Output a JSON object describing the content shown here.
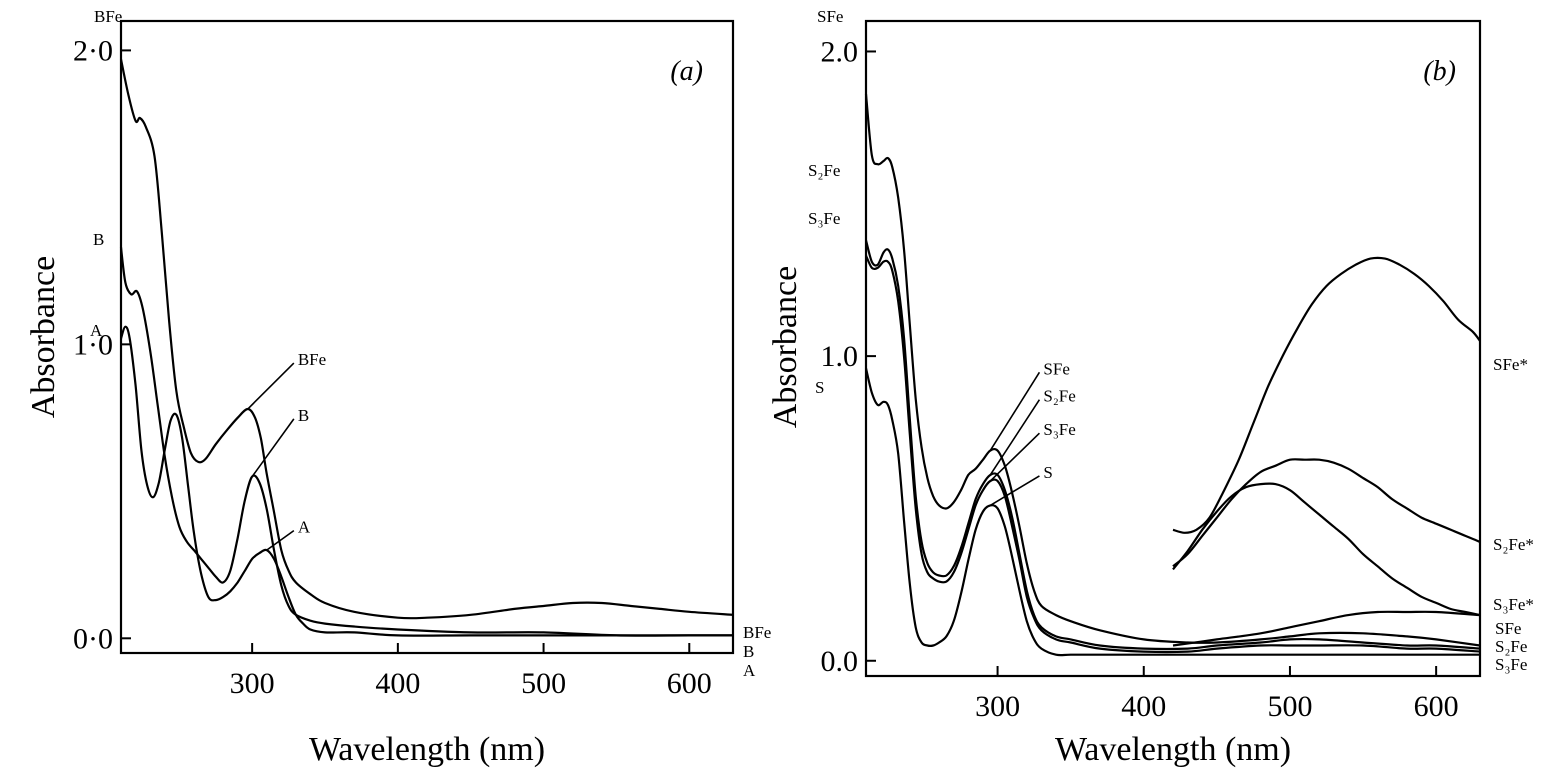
{
  "chart_data": [
    {
      "type": "line",
      "panel_label": "(a)",
      "xlabel": "Wavelength (nm)",
      "ylabel": "Absorbance",
      "xlim": [
        210,
        630
      ],
      "ylim": [
        -0.05,
        2.1
      ],
      "xticks": [
        300,
        400,
        500,
        600
      ],
      "xtick_labels": [
        "300",
        "400",
        "500",
        "600"
      ],
      "yticks": [
        0,
        1,
        2
      ],
      "ytick_labels": [
        "0·0",
        "1·0",
        "2·0"
      ],
      "series": [
        {
          "name": "BFe",
          "x": [
            210,
            215,
            220,
            223,
            227,
            233,
            238,
            243,
            248,
            253,
            258,
            263,
            268,
            275,
            283,
            290,
            297,
            302,
            306,
            310,
            315,
            320,
            325,
            330,
            340,
            350,
            370,
            400,
            420,
            450,
            480,
            500,
            520,
            540,
            560,
            580,
            600,
            630
          ],
          "y": [
            1.97,
            1.85,
            1.76,
            1.77,
            1.74,
            1.64,
            1.38,
            1.08,
            0.84,
            0.72,
            0.63,
            0.6,
            0.61,
            0.66,
            0.71,
            0.75,
            0.78,
            0.75,
            0.68,
            0.56,
            0.43,
            0.3,
            0.23,
            0.19,
            0.15,
            0.12,
            0.09,
            0.07,
            0.07,
            0.08,
            0.1,
            0.11,
            0.12,
            0.12,
            0.11,
            0.1,
            0.09,
            0.08
          ]
        },
        {
          "name": "B",
          "x": [
            210,
            213,
            217,
            221,
            225,
            230,
            235,
            240,
            245,
            250,
            255,
            260,
            265,
            270,
            275,
            280,
            285,
            290,
            295,
            300,
            305,
            310,
            315,
            320,
            325,
            330,
            340,
            350,
            370,
            400,
            450,
            500,
            550,
            600,
            630
          ],
          "y": [
            1.33,
            1.21,
            1.17,
            1.18,
            1.12,
            0.98,
            0.8,
            0.62,
            0.48,
            0.38,
            0.33,
            0.3,
            0.27,
            0.24,
            0.21,
            0.19,
            0.23,
            0.34,
            0.47,
            0.55,
            0.53,
            0.44,
            0.3,
            0.18,
            0.11,
            0.08,
            0.06,
            0.05,
            0.04,
            0.03,
            0.02,
            0.02,
            0.01,
            0.01,
            0.01
          ]
        },
        {
          "name": "A",
          "x": [
            210,
            213,
            216,
            220,
            224,
            228,
            232,
            236,
            240,
            244,
            248,
            252,
            256,
            260,
            265,
            270,
            275,
            280,
            285,
            290,
            295,
            300,
            305,
            310,
            315,
            320,
            325,
            330,
            335,
            340,
            350,
            370,
            400,
            450,
            500,
            550,
            600,
            630
          ],
          "y": [
            1.02,
            1.06,
            1.02,
            0.86,
            0.64,
            0.52,
            0.48,
            0.53,
            0.64,
            0.74,
            0.76,
            0.68,
            0.52,
            0.36,
            0.22,
            0.14,
            0.13,
            0.14,
            0.16,
            0.19,
            0.23,
            0.27,
            0.29,
            0.3,
            0.27,
            0.21,
            0.14,
            0.08,
            0.05,
            0.03,
            0.02,
            0.02,
            0.01,
            0.01,
            0.01,
            0.01,
            0.01,
            0.01
          ]
        }
      ],
      "annotations": [
        {
          "text": "BFe",
          "x": 330,
          "y": 0.95
        },
        {
          "text": "B",
          "x": 330,
          "y": 0.76
        },
        {
          "text": "A",
          "x": 330,
          "y": 0.38
        }
      ],
      "left_labels": [
        "BFe",
        "B",
        "A"
      ],
      "right_labels": [
        "BFe",
        "B",
        "A"
      ]
    },
    {
      "type": "line",
      "panel_label": "(b)",
      "xlabel": "Wavelength (nm)",
      "ylabel": "Absorbance",
      "xlim": [
        210,
        630
      ],
      "ylim": [
        -0.05,
        2.1
      ],
      "xticks": [
        300,
        400,
        500,
        600
      ],
      "xtick_labels": [
        "300",
        "400",
        "500",
        "600"
      ],
      "yticks": [
        0,
        1,
        2
      ],
      "ytick_labels": [
        "0.0",
        "1.0",
        "2.0"
      ],
      "series": [
        {
          "name": "SFe",
          "x": [
            210,
            214,
            218,
            222,
            225,
            228,
            232,
            236,
            240,
            244,
            248,
            252,
            256,
            260,
            265,
            270,
            275,
            280,
            285,
            290,
            295,
            300,
            305,
            310,
            315,
            320,
            325,
            330,
            340,
            350,
            370,
            400,
            430,
            450,
            480,
            500,
            520,
            550,
            580,
            600,
            630
          ],
          "y": [
            1.86,
            1.66,
            1.63,
            1.64,
            1.65,
            1.62,
            1.52,
            1.35,
            1.1,
            0.86,
            0.7,
            0.6,
            0.54,
            0.51,
            0.5,
            0.52,
            0.56,
            0.61,
            0.63,
            0.66,
            0.69,
            0.69,
            0.64,
            0.55,
            0.44,
            0.32,
            0.23,
            0.18,
            0.15,
            0.13,
            0.1,
            0.07,
            0.06,
            0.06,
            0.07,
            0.08,
            0.09,
            0.09,
            0.08,
            0.07,
            0.05
          ]
        },
        {
          "name": "S2Fe",
          "x": [
            210,
            214,
            218,
            222,
            225,
            228,
            232,
            236,
            240,
            244,
            248,
            252,
            256,
            260,
            265,
            270,
            275,
            280,
            285,
            290,
            295,
            300,
            305,
            310,
            315,
            320,
            325,
            330,
            340,
            350,
            370,
            400,
            430,
            450,
            480,
            500,
            520,
            550,
            580,
            600,
            630
          ],
          "y": [
            1.38,
            1.31,
            1.3,
            1.34,
            1.35,
            1.32,
            1.23,
            1.06,
            0.79,
            0.54,
            0.39,
            0.32,
            0.29,
            0.28,
            0.28,
            0.31,
            0.37,
            0.45,
            0.53,
            0.58,
            0.61,
            0.61,
            0.56,
            0.47,
            0.35,
            0.23,
            0.15,
            0.11,
            0.08,
            0.07,
            0.05,
            0.04,
            0.04,
            0.05,
            0.06,
            0.07,
            0.07,
            0.06,
            0.05,
            0.05,
            0.04
          ]
        },
        {
          "name": "S3Fe",
          "x": [
            210,
            214,
            218,
            222,
            225,
            228,
            232,
            236,
            240,
            244,
            248,
            252,
            256,
            260,
            265,
            270,
            275,
            280,
            285,
            290,
            295,
            300,
            305,
            310,
            315,
            320,
            325,
            330,
            340,
            350,
            370,
            400,
            430,
            450,
            480,
            500,
            520,
            550,
            580,
            600,
            630
          ],
          "y": [
            1.33,
            1.29,
            1.29,
            1.31,
            1.31,
            1.28,
            1.18,
            1.0,
            0.74,
            0.5,
            0.35,
            0.29,
            0.27,
            0.26,
            0.26,
            0.29,
            0.35,
            0.43,
            0.51,
            0.56,
            0.59,
            0.59,
            0.54,
            0.44,
            0.33,
            0.21,
            0.14,
            0.1,
            0.07,
            0.06,
            0.04,
            0.03,
            0.03,
            0.04,
            0.05,
            0.05,
            0.05,
            0.05,
            0.04,
            0.04,
            0.03
          ]
        },
        {
          "name": "S",
          "x": [
            210,
            214,
            218,
            222,
            225,
            228,
            232,
            236,
            240,
            244,
            248,
            252,
            256,
            260,
            265,
            270,
            275,
            280,
            285,
            290,
            295,
            300,
            305,
            310,
            315,
            320,
            325,
            330,
            340,
            350,
            370,
            400,
            450,
            500,
            550,
            600,
            630
          ],
          "y": [
            0.96,
            0.88,
            0.84,
            0.85,
            0.84,
            0.79,
            0.68,
            0.46,
            0.25,
            0.11,
            0.06,
            0.05,
            0.05,
            0.06,
            0.08,
            0.13,
            0.22,
            0.33,
            0.43,
            0.49,
            0.51,
            0.5,
            0.44,
            0.34,
            0.23,
            0.13,
            0.07,
            0.04,
            0.02,
            0.02,
            0.02,
            0.02,
            0.02,
            0.02,
            0.02,
            0.02,
            0.02
          ]
        },
        {
          "name": "SFe*",
          "x": [
            420,
            428,
            436,
            445,
            455,
            465,
            475,
            485,
            495,
            505,
            515,
            525,
            535,
            545,
            555,
            565,
            575,
            585,
            595,
            605,
            615,
            625,
            630
          ],
          "y": [
            0.43,
            0.42,
            0.43,
            0.47,
            0.56,
            0.66,
            0.78,
            0.9,
            1.0,
            1.09,
            1.17,
            1.23,
            1.27,
            1.3,
            1.32,
            1.32,
            1.3,
            1.27,
            1.23,
            1.18,
            1.12,
            1.08,
            1.05
          ]
        },
        {
          "name": "S2Fe*",
          "x": [
            420,
            430,
            440,
            450,
            460,
            470,
            480,
            490,
            500,
            510,
            520,
            530,
            540,
            550,
            560,
            570,
            580,
            590,
            600,
            610,
            620,
            630
          ],
          "y": [
            0.31,
            0.35,
            0.41,
            0.47,
            0.53,
            0.58,
            0.62,
            0.64,
            0.66,
            0.66,
            0.66,
            0.65,
            0.63,
            0.6,
            0.57,
            0.53,
            0.5,
            0.47,
            0.45,
            0.43,
            0.41,
            0.39
          ]
        },
        {
          "name": "S3Fe*",
          "x": [
            420,
            430,
            440,
            450,
            460,
            470,
            480,
            490,
            500,
            510,
            520,
            530,
            540,
            550,
            560,
            570,
            580,
            590,
            600,
            610,
            620,
            630
          ],
          "y": [
            0.3,
            0.36,
            0.43,
            0.49,
            0.54,
            0.57,
            0.58,
            0.58,
            0.56,
            0.52,
            0.48,
            0.44,
            0.4,
            0.35,
            0.31,
            0.27,
            0.24,
            0.21,
            0.19,
            0.17,
            0.16,
            0.15
          ]
        },
        {
          "name": "",
          "x": [
            420,
            450,
            480,
            500,
            520,
            540,
            560,
            580,
            600,
            630
          ],
          "y": [
            0.05,
            0.07,
            0.09,
            0.11,
            0.13,
            0.15,
            0.16,
            0.16,
            0.16,
            0.15
          ]
        }
      ],
      "annotations": [
        {
          "text": "SFe",
          "x": 330,
          "y": 0.96
        },
        {
          "text": "S₂Fe",
          "x": 330,
          "y": 0.87
        },
        {
          "text": "S₃Fe",
          "x": 330,
          "y": 0.76
        },
        {
          "text": "S",
          "x": 330,
          "y": 0.62
        }
      ],
      "left_labels": [
        "SFe",
        "S₂Fe",
        "S₃Fe",
        "S"
      ],
      "right_labels": [
        "SFe*",
        "S₂Fe*",
        "S₃Fe*",
        "SFe",
        "S₂Fe",
        "S₃Fe"
      ]
    }
  ]
}
